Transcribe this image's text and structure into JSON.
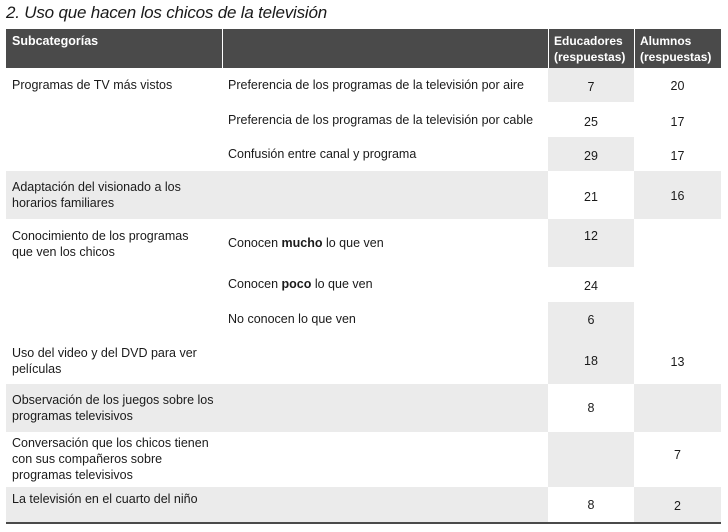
{
  "title": "2. Uso que hacen los chicos de la televisión",
  "headers": {
    "subcat": "Subcategorías",
    "educadores": "Educadores (respuestas)",
    "alumnos": "Alumnos (respuestas)"
  },
  "rows": {
    "r1": {
      "subcat": "Programas de TV más vistos",
      "d1": "Preferencia de los programas de la televisión por aire",
      "e1": "7",
      "a1": "20",
      "d2": "Preferencia de los programas de la televisión por cable",
      "e2": "25",
      "a2": "17",
      "d3": "Confusión entre canal y programa",
      "e3": "29",
      "a3": "17"
    },
    "r2": {
      "subcat": "Adaptación del visionado a los horarios familiares",
      "e": "21",
      "a": "16"
    },
    "r3": {
      "subcat": "Conocimiento de los programas que ven los chicos",
      "d1_pre": "Conocen ",
      "d1_bold": "mucho",
      "d1_post": " lo que ven",
      "e1": "12",
      "d2_pre": "Conocen ",
      "d2_bold": "poco",
      "d2_post": " lo que ven",
      "e2": "24",
      "d3": "No conocen lo que ven",
      "e3": "6"
    },
    "r4": {
      "subcat": "Uso del video y del DVD para ver películas",
      "e": "18",
      "a": "13"
    },
    "r5": {
      "subcat": "Observación de los juegos sobre los programas televisivos",
      "e": "8"
    },
    "r6": {
      "subcat": "Conversación que los chicos tienen con sus compañeros sobre programas televisivos",
      "a": "7"
    },
    "r7": {
      "subcat": "La televisión en el cuarto del niño",
      "e": "8",
      "a": "2"
    }
  }
}
